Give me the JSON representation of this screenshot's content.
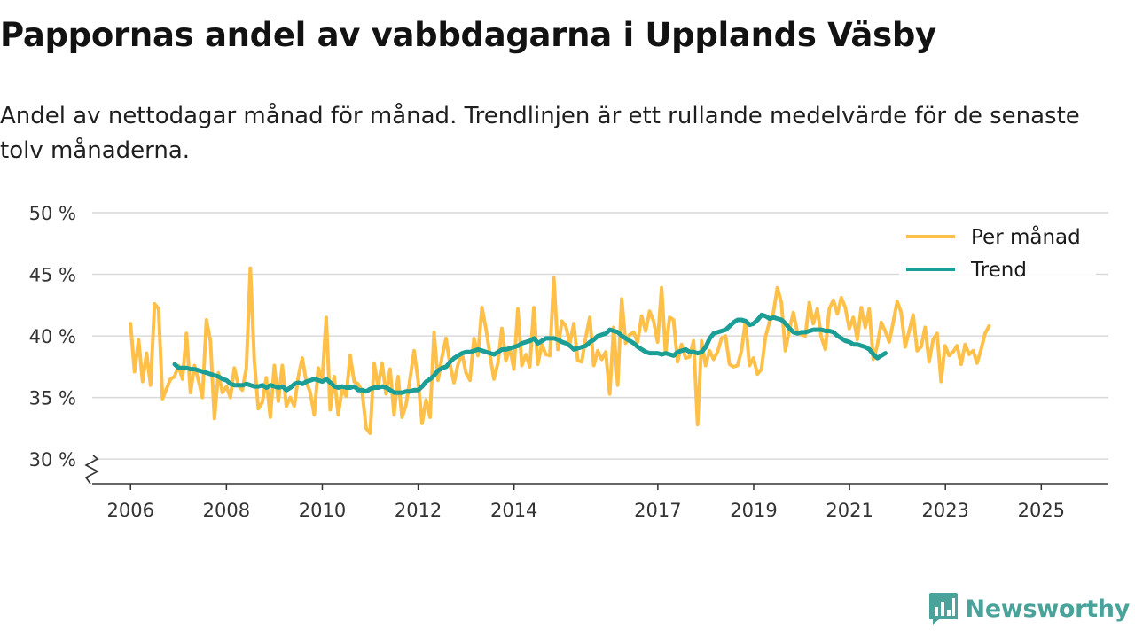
{
  "header": {
    "title": "Pappornas andel av vabbdagarna i Upplands Väsby",
    "subtitle": "Andel av nettodagar månad för månad. Trendlinjen är ett rullande medelvärde för de senaste tolv månaderna."
  },
  "brand": {
    "name": "Newsworthy",
    "icon": "newsworthy-logo-icon"
  },
  "colors": {
    "monthly": "#ffc04a",
    "trend": "#1a9e96",
    "grid": "#d9d9d9",
    "axis": "#333333"
  },
  "chart_data": {
    "type": "line",
    "title": "Pappornas andel av vabbdagarna i Upplands Väsby",
    "xlabel": "",
    "ylabel": "",
    "ylim": [
      28,
      50
    ],
    "xlim": [
      2005.2,
      2026.4
    ],
    "y_ticks": [
      30,
      35,
      40,
      45,
      50
    ],
    "y_tick_labels": [
      "30 %",
      "35 %",
      "40 %",
      "45 %",
      "50 %"
    ],
    "x_ticks": [
      2006,
      2008,
      2010,
      2012,
      2014,
      2017,
      2019,
      2021,
      2023,
      2025
    ],
    "x_tick_labels": [
      "2006",
      "2008",
      "2010",
      "2012",
      "2014",
      "2017",
      "2019",
      "2021",
      "2023",
      "2025"
    ],
    "grid": true,
    "legend_position": "top-right",
    "series": [
      {
        "name": "Per månad",
        "key": "monthly",
        "start_year": 2006.0,
        "step": 0.0833,
        "values": [
          41.0,
          37.1,
          39.7,
          36.3,
          38.6,
          36.0,
          42.6,
          42.2,
          34.9,
          35.7,
          36.5,
          36.7,
          37.6,
          36.5,
          40.2,
          35.4,
          37.6,
          36.4,
          35.0,
          41.3,
          39.6,
          33.3,
          37.0,
          35.4,
          35.9,
          35.0,
          37.4,
          36.0,
          35.6,
          37.4,
          45.5,
          38.0,
          34.1,
          34.6,
          36.6,
          33.4,
          37.6,
          34.7,
          37.6,
          34.3,
          35.0,
          34.3,
          36.7,
          38.2,
          36.3,
          35.4,
          33.6,
          37.4,
          36.4,
          41.5,
          34.0,
          36.7,
          33.6,
          35.7,
          35.1,
          38.4,
          36.3,
          36.1,
          35.5,
          32.5,
          32.1,
          37.8,
          35.9,
          37.8,
          35.3,
          37.3,
          33.6,
          36.7,
          33.4,
          34.4,
          36.5,
          38.8,
          36.4,
          32.9,
          34.8,
          33.4,
          40.3,
          36.4,
          38.3,
          39.8,
          37.7,
          36.2,
          37.7,
          38.6,
          37.0,
          36.4,
          39.8,
          38.4,
          42.3,
          40.6,
          38.5,
          36.5,
          37.8,
          40.6,
          38.0,
          39.0,
          37.3,
          42.2,
          37.6,
          38.5,
          37.5,
          42.3,
          37.7,
          39.3,
          38.5,
          38.4,
          44.7,
          38.9,
          41.2,
          40.8,
          39.4,
          41.0,
          38.0,
          37.9,
          39.9,
          41.5,
          37.6,
          38.8,
          38.1,
          38.7,
          35.3,
          40.7,
          36.0,
          43.0,
          39.4,
          40.1,
          40.3,
          39.5,
          41.6,
          40.4,
          42.0,
          41.2,
          39.5,
          43.9,
          38.6,
          41.5,
          41.3,
          37.9,
          39.3,
          38.2,
          38.3,
          39.6,
          32.8,
          39.6,
          37.6,
          38.8,
          38.1,
          38.7,
          39.8,
          40.0,
          37.7,
          37.5,
          37.6,
          38.8,
          41.2,
          37.6,
          38.2,
          36.9,
          37.3,
          39.9,
          41.1,
          41.9,
          43.9,
          42.7,
          38.8,
          40.5,
          41.9,
          40.3,
          40.1,
          40.0,
          42.7,
          41.0,
          42.2,
          39.9,
          38.9,
          42.2,
          42.9,
          41.8,
          43.1,
          42.3,
          40.6,
          41.5,
          39.7,
          42.3,
          40.7,
          42.2,
          38.1,
          39.2,
          41.1,
          40.4,
          39.5,
          41.1,
          42.8,
          41.9,
          39.1,
          40.4,
          41.7,
          38.8,
          39.1,
          40.7,
          37.9,
          39.7,
          40.2,
          36.3,
          39.2,
          38.4,
          38.7,
          39.2,
          37.7,
          39.3,
          38.5,
          38.8,
          37.8,
          38.9,
          40.2,
          40.8
        ]
      },
      {
        "name": "Trend",
        "key": "trend",
        "start_year": 2006.92,
        "step": 0.0833,
        "values": [
          37.7,
          37.4,
          37.4,
          37.4,
          37.3,
          37.3,
          37.2,
          37.1,
          37.0,
          36.9,
          36.8,
          36.7,
          36.5,
          36.4,
          36.1,
          36.0,
          36.0,
          36.0,
          36.1,
          36.0,
          35.9,
          35.9,
          36.0,
          35.8,
          36.0,
          35.9,
          35.8,
          35.9,
          35.6,
          35.8,
          36.1,
          36.2,
          36.1,
          36.3,
          36.4,
          36.5,
          36.4,
          36.3,
          36.5,
          36.2,
          35.9,
          35.8,
          35.9,
          35.8,
          35.8,
          35.9,
          35.6,
          35.6,
          35.5,
          35.7,
          35.8,
          35.8,
          35.9,
          35.8,
          35.6,
          35.4,
          35.4,
          35.4,
          35.5,
          35.5,
          35.6,
          35.6,
          35.9,
          36.3,
          36.5,
          36.8,
          37.2,
          37.4,
          37.5,
          37.9,
          38.2,
          38.4,
          38.6,
          38.7,
          38.7,
          38.8,
          38.9,
          38.8,
          38.7,
          38.6,
          38.5,
          38.7,
          38.9,
          38.9,
          39.0,
          39.1,
          39.2,
          39.4,
          39.5,
          39.6,
          39.8,
          39.4,
          39.6,
          39.8,
          39.8,
          39.8,
          39.7,
          39.5,
          39.4,
          39.2,
          38.9,
          39.0,
          39.1,
          39.2,
          39.5,
          39.7,
          40.0,
          40.1,
          40.2,
          40.5,
          40.4,
          40.3,
          40.0,
          39.8,
          39.6,
          39.4,
          39.1,
          38.9,
          38.7,
          38.6,
          38.6,
          38.6,
          38.5,
          38.6,
          38.5,
          38.4,
          38.7,
          38.8,
          38.9,
          38.7,
          38.7,
          38.6,
          38.7,
          39.1,
          39.8,
          40.2,
          40.3,
          40.4,
          40.5,
          40.8,
          41.1,
          41.3,
          41.3,
          41.2,
          40.9,
          41.0,
          41.3,
          41.7,
          41.6,
          41.4,
          41.5,
          41.4,
          41.3,
          41.0,
          40.6,
          40.3,
          40.2,
          40.3,
          40.3,
          40.4,
          40.5,
          40.5,
          40.5,
          40.4,
          40.4,
          40.3,
          40.0,
          39.8,
          39.6,
          39.5,
          39.3,
          39.3,
          39.2,
          39.1,
          38.9,
          38.5,
          38.2,
          38.4,
          38.6
        ]
      }
    ]
  }
}
